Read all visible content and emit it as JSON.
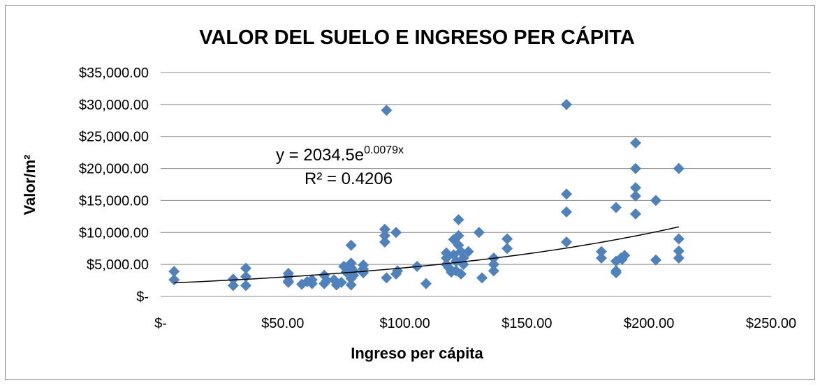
{
  "chart_data": {
    "type": "scatter",
    "title": "VALOR DEL SUELO E INGRESO PER CÁPITA",
    "x_label": "Ingreso per cápita",
    "y_label": "Valor/m²",
    "color": "#4f81bd",
    "x": [
      5.5,
      5.5,
      29.7,
      29.7,
      34.9,
      34.9,
      34.9,
      52.3,
      52.3,
      52.3,
      52.3,
      57.8,
      60,
      62,
      62,
      67,
      67,
      68,
      71,
      72,
      74,
      75,
      76,
      78,
      78,
      78,
      78,
      78,
      79,
      79,
      83,
      83,
      83,
      91.8,
      91.8,
      91.8,
      92.5,
      92.5,
      96.4,
      96.4,
      97,
      105,
      108.7,
      117,
      117,
      117,
      118,
      119,
      120,
      120,
      121,
      121,
      122,
      122,
      122,
      123,
      123,
      124,
      124,
      126,
      130.4,
      131.6,
      136.4,
      136.4,
      136.4,
      141.9,
      141.9,
      166.2,
      166.2,
      166.2,
      166.2,
      180.5,
      180.5,
      186.5,
      186.5,
      186.5,
      186.5,
      188.5,
      190,
      189,
      194.5,
      194.5,
      194.5,
      194.5,
      194.5,
      202.8,
      202.8,
      212.2,
      212.2,
      212.2,
      212.2
    ],
    "values": [
      3900,
      2600,
      2700,
      1700,
      4400,
      3100,
      1700,
      3600,
      3100,
      2400,
      2200,
      1900,
      2300,
      2000,
      2600,
      3300,
      2000,
      2500,
      2600,
      1800,
      2200,
      4700,
      3800,
      4500,
      8000,
      5200,
      2800,
      1800,
      3300,
      4000,
      4900,
      4300,
      3700,
      10500,
      9500,
      8500,
      29100,
      2900,
      10000,
      3500,
      4000,
      4700,
      2000,
      6800,
      6000,
      5000,
      4500,
      3800,
      8900,
      6500,
      5500,
      4000,
      12000,
      9500,
      8000,
      7000,
      3500,
      5000,
      6000,
      7000,
      10000,
      2900,
      6000,
      5000,
      4000,
      9000,
      7500,
      30000,
      16000,
      13200,
      8500,
      7000,
      6000,
      13900,
      5500,
      4000,
      3700,
      6000,
      6400,
      5800,
      24000,
      20000,
      17000,
      15700,
      12900,
      15000,
      5700,
      20000,
      9000,
      7100,
      6000
    ],
    "xlim": [
      0,
      250
    ],
    "ylim": [
      0,
      35000
    ],
    "xticks": [
      {
        "value": 0,
        "label": "$-"
      },
      {
        "value": 50,
        "label": "$50.00"
      },
      {
        "value": 100,
        "label": "$100.00"
      },
      {
        "value": 150,
        "label": "$150.00"
      },
      {
        "value": 200,
        "label": "$200.00"
      },
      {
        "value": 250,
        "label": "$250.00"
      }
    ],
    "yticks": [
      {
        "value": 0,
        "label": "$-"
      },
      {
        "value": 5000,
        "label": "$5,000.00"
      },
      {
        "value": 10000,
        "label": "$10,000.00"
      },
      {
        "value": 15000,
        "label": "$15,000.00"
      },
      {
        "value": 20000,
        "label": "$20,000.00"
      },
      {
        "value": 25000,
        "label": "$25,000.00"
      },
      {
        "value": 30000,
        "label": "$30,000.00"
      },
      {
        "value": 35000,
        "label": "$35,000.00"
      }
    ],
    "grid": true,
    "trendline": {
      "type": "exponential",
      "a": 2034.5,
      "b": 0.0079,
      "xlim": [
        5.5,
        212.2
      ]
    },
    "equation": {
      "base": "y = 2034.5e",
      "exponent": "0.0079x"
    },
    "r2_label": "R² = 0.4206"
  }
}
